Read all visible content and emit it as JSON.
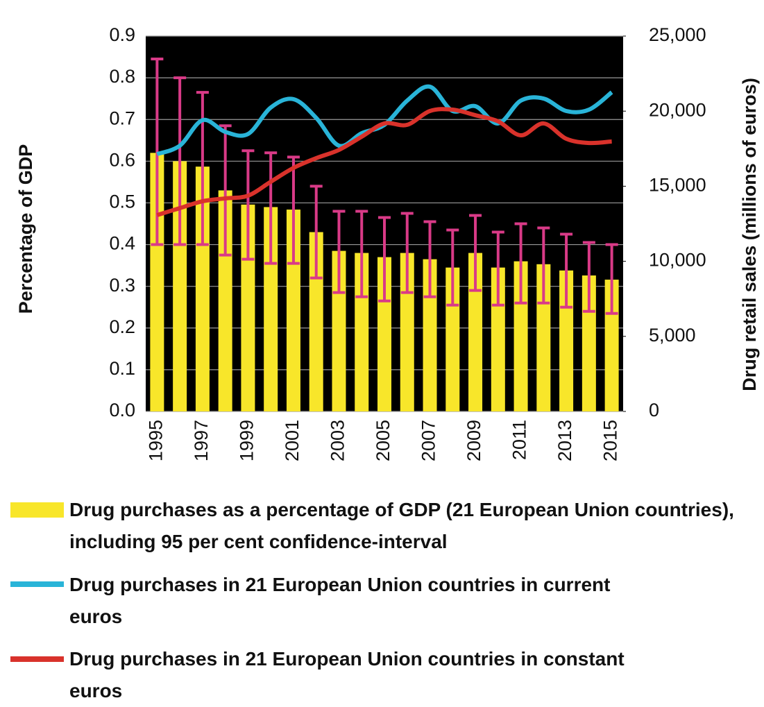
{
  "chart_data": {
    "type": "bar",
    "y_label": "Percentage of GDP",
    "y2_label": "Drug retail sales (millions of euros)",
    "categories": [
      "1995",
      null,
      "1997",
      null,
      "1999",
      null,
      "2001",
      null,
      "2003",
      null,
      "2005",
      null,
      "2007",
      null,
      "2009",
      null,
      "2011",
      null,
      "2013",
      null,
      "2015"
    ],
    "ylim": [
      0,
      0.9
    ],
    "yticks": [
      {
        "value": 0,
        "label": "0.0"
      },
      0.1,
      0.2,
      0.3,
      0.4,
      0.5,
      0.6,
      0.7,
      0.8,
      0.9
    ],
    "y2lim": [
      0,
      25000
    ],
    "y2ticks": [
      0,
      {
        "value": 5000,
        "label": "5,000"
      },
      {
        "value": 10000,
        "label": "10,000"
      },
      {
        "value": 15000,
        "label": "15,000"
      },
      {
        "value": 20000,
        "label": "20,000"
      },
      {
        "value": 25000,
        "label": "25,000"
      }
    ],
    "grid": true,
    "background": "#000000",
    "series": [
      {
        "name": "Drug purchases as a percentage of GDP (21 European Union countries), including 95 per cent confidence-interval",
        "type": "bar",
        "axis": "y",
        "color": "#f8e62a",
        "error_color": "#d93a87",
        "values": [
          0.62,
          0.6,
          0.587,
          0.53,
          0.496,
          0.49,
          0.484,
          0.43,
          0.385,
          0.38,
          0.37,
          0.38,
          0.365,
          0.345,
          0.38,
          0.345,
          0.36,
          0.353,
          0.338,
          0.326,
          0.316
        ],
        "ci_low": [
          0.4,
          0.4,
          0.4,
          0.375,
          0.365,
          0.355,
          0.355,
          0.32,
          0.285,
          0.275,
          0.265,
          0.285,
          0.275,
          0.255,
          0.29,
          0.255,
          0.26,
          0.26,
          0.25,
          0.24,
          0.235
        ],
        "ci_high": [
          0.845,
          0.8,
          0.765,
          0.685,
          0.625,
          0.62,
          0.61,
          0.54,
          0.48,
          0.48,
          0.465,
          0.475,
          0.455,
          0.435,
          0.47,
          0.43,
          0.45,
          0.44,
          0.425,
          0.405,
          0.4
        ]
      },
      {
        "name": "Drug purchases in 21 European Union countries in current euros",
        "type": "line",
        "axis": "y2",
        "color": "#29b4d8",
        "values": [
          17140,
          17700,
          19400,
          18620,
          18480,
          20240,
          20800,
          19550,
          17700,
          18530,
          19090,
          20700,
          21630,
          20010,
          20330,
          19180,
          20700,
          20840,
          20010,
          20100,
          21260
        ]
      },
      {
        "name": "Drug purchases in 21 European Union countries in constant euros",
        "type": "line",
        "axis": "y2",
        "color": "#d9322b",
        "values": [
          13080,
          13540,
          14000,
          14190,
          14370,
          15300,
          16220,
          16870,
          17420,
          18300,
          19180,
          19090,
          20010,
          20100,
          19730,
          19320,
          18390,
          19180,
          18160,
          17880,
          17980
        ]
      }
    ]
  }
}
